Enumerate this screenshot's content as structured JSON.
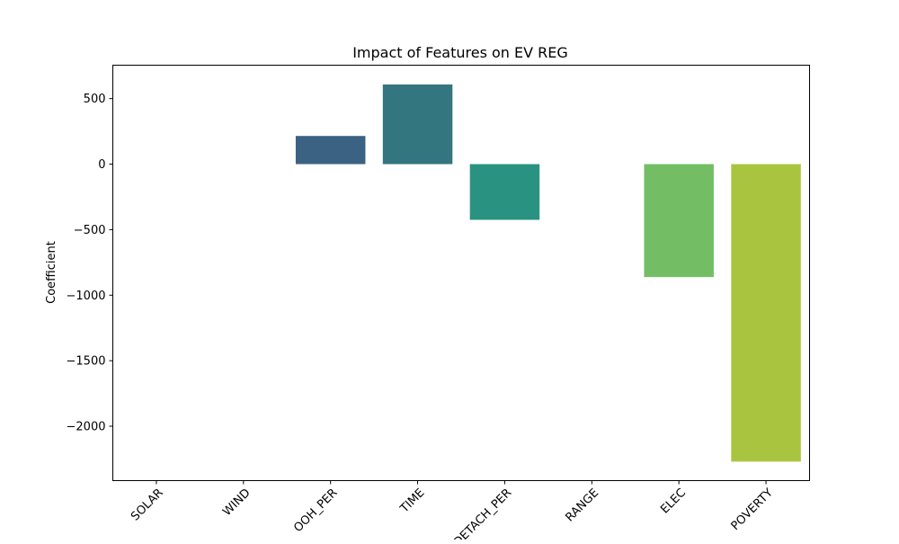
{
  "chart_data": {
    "type": "bar",
    "title": "Impact of Features on EV REG",
    "xlabel": "",
    "ylabel": "Coefficient",
    "categories": [
      "SOLAR",
      "WIND",
      "OOH_PER",
      "TIME",
      "DETACH_PER",
      "RANGE",
      "ELEC",
      "POVERTY"
    ],
    "values": [
      0,
      0,
      215,
      608,
      -425,
      0,
      -862,
      -2270
    ],
    "colors": [
      "#482475",
      "#414487",
      "#3b6283",
      "#33767f",
      "#2a9280",
      "#3fb172",
      "#73be65",
      "#a9c540"
    ],
    "ylim": [
      -2415,
      755
    ],
    "yticks": [
      500,
      0,
      -500,
      -1000,
      -1500,
      -2000
    ],
    "ytick_labels": [
      "500",
      "0",
      "−500",
      "−1000",
      "−1500",
      "−2000"
    ],
    "grid": false,
    "legend": "none"
  }
}
